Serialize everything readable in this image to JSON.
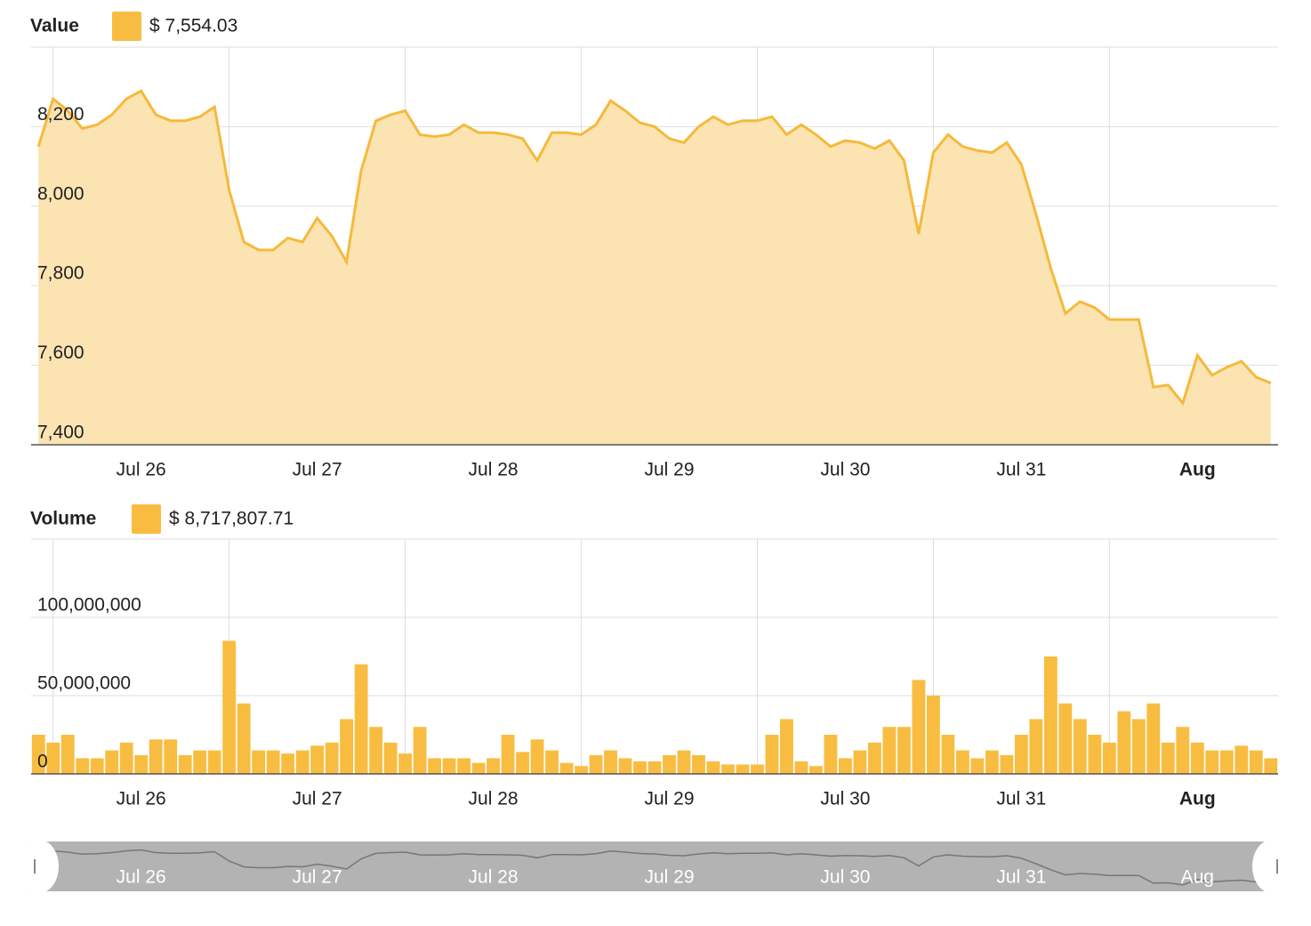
{
  "chart_data": [
    {
      "type": "area",
      "title": "Value",
      "readout": "$ 7,554.03",
      "color": "#f6b93b",
      "fill": "#fbe4b2",
      "categories": [
        null,
        null,
        null,
        null,
        null,
        null,
        null,
        "Jul 26",
        null,
        null,
        null,
        null,
        null,
        null,
        null,
        null,
        null,
        null,
        null,
        "Jul 27",
        null,
        null,
        null,
        null,
        null,
        null,
        null,
        null,
        null,
        null,
        null,
        "Jul 28",
        null,
        null,
        null,
        null,
        null,
        null,
        null,
        null,
        null,
        null,
        null,
        "Jul 29",
        null,
        null,
        null,
        null,
        null,
        null,
        null,
        null,
        null,
        null,
        null,
        "Jul 30",
        null,
        null,
        null,
        null,
        null,
        null,
        null,
        null,
        null,
        null,
        null,
        "Jul 31",
        null,
        null,
        null,
        null,
        null,
        null,
        null,
        null,
        null,
        null,
        null,
        "Aug",
        null,
        null,
        null,
        null,
        null
      ],
      "values": [
        8150,
        8270,
        8240,
        8195,
        8205,
        8230,
        8270,
        8290,
        8230,
        8215,
        8215,
        8225,
        8250,
        8040,
        7910,
        7890,
        7890,
        7920,
        7910,
        7970,
        7925,
        7860,
        8090,
        8215,
        8230,
        8240,
        8180,
        8175,
        8180,
        8205,
        8185,
        8185,
        8180,
        8170,
        8115,
        8185,
        8185,
        8180,
        8205,
        8265,
        8240,
        8210,
        8200,
        8170,
        8160,
        8200,
        8225,
        8205,
        8215,
        8215,
        8225,
        8180,
        8205,
        8180,
        8150,
        8165,
        8160,
        8145,
        8165,
        8115,
        7930,
        8135,
        8180,
        8150,
        8140,
        8135,
        8160,
        8105,
        7980,
        7845,
        7730,
        7760,
        7745,
        7715,
        7715,
        7715,
        7545,
        7550,
        7505,
        7625,
        7575,
        7595,
        7610,
        7570,
        7555
      ],
      "ylim": [
        7400,
        8400
      ],
      "yticks": [
        {
          "value": 7400,
          "label": "7,400"
        },
        {
          "value": 7600,
          "label": "7,600"
        },
        {
          "value": 7800,
          "label": "7,800"
        },
        {
          "value": 8000,
          "label": "8,000"
        },
        {
          "value": 8200,
          "label": "8,200"
        }
      ],
      "grid": true
    },
    {
      "type": "bar",
      "title": "Volume",
      "readout": "$ 8,717,807.71",
      "color": "#f8bd40",
      "categories": [
        null,
        null,
        null,
        null,
        null,
        null,
        null,
        "Jul 26",
        null,
        null,
        null,
        null,
        null,
        null,
        null,
        null,
        null,
        null,
        null,
        "Jul 27",
        null,
        null,
        null,
        null,
        null,
        null,
        null,
        null,
        null,
        null,
        null,
        "Jul 28",
        null,
        null,
        null,
        null,
        null,
        null,
        null,
        null,
        null,
        null,
        null,
        "Jul 29",
        null,
        null,
        null,
        null,
        null,
        null,
        null,
        null,
        null,
        null,
        null,
        "Jul 30",
        null,
        null,
        null,
        null,
        null,
        null,
        null,
        null,
        null,
        null,
        null,
        "Jul 31",
        null,
        null,
        null,
        null,
        null,
        null,
        null,
        null,
        null,
        null,
        null,
        "Aug",
        null,
        null,
        null,
        null,
        null
      ],
      "values": [
        25000000,
        20000000,
        25000000,
        10000000,
        10000000,
        15000000,
        20000000,
        12000000,
        22000000,
        22000000,
        12000000,
        15000000,
        15000000,
        85000000,
        45000000,
        15000000,
        15000000,
        13000000,
        15000000,
        18000000,
        20000000,
        35000000,
        70000000,
        30000000,
        20000000,
        13000000,
        30000000,
        10000000,
        10000000,
        10000000,
        7000000,
        10000000,
        25000000,
        14000000,
        22000000,
        15000000,
        7000000,
        5000000,
        12000000,
        15000000,
        10000000,
        8000000,
        8000000,
        12000000,
        15000000,
        12000000,
        8000000,
        6000000,
        6000000,
        6000000,
        25000000,
        35000000,
        8000000,
        5000000,
        25000000,
        10000000,
        15000000,
        20000000,
        30000000,
        30000000,
        60000000,
        50000000,
        25000000,
        15000000,
        10000000,
        15000000,
        12000000,
        25000000,
        35000000,
        75000000,
        45000000,
        35000000,
        25000000,
        20000000,
        40000000,
        35000000,
        45000000,
        20000000,
        30000000,
        20000000,
        15000000,
        15000000,
        18000000,
        15000000,
        10000000
      ],
      "ylim": [
        0,
        150000000
      ],
      "yticks": [
        0,
        {
          "value": 50000000,
          "label": "50,000,000"
        },
        {
          "value": 100000000,
          "label": "100,000,000"
        }
      ],
      "grid": true
    }
  ]
}
